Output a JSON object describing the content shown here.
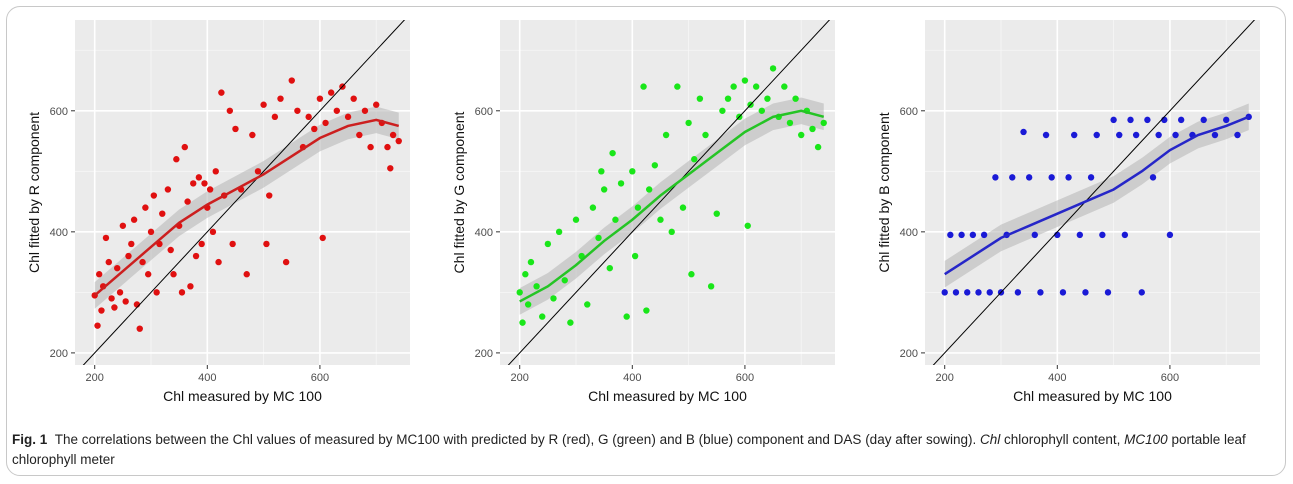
{
  "caption": {
    "fig_label": "Fig. 1",
    "text": "The correlations between the Chl values of measured by MC100 with predicted by R (red), G (green) and B (blue) component and DAS (day after sowing).",
    "abbr1_term": "Chl",
    "abbr1_def": "chlorophyll content,",
    "abbr2_term": "MC100",
    "abbr2_def": "portable leaf chlorophyll meter"
  },
  "chart_data": [
    {
      "type": "scatter",
      "xlabel": "Chl measured by MC 100",
      "ylabel": "Chl fitted by R component",
      "xlim": [
        165,
        760
      ],
      "ylim": [
        180,
        750
      ],
      "xticks": [
        200,
        400,
        600
      ],
      "yticks": [
        200,
        400,
        600
      ],
      "grid": true,
      "point_color": "#e01010",
      "fit_color": "#cc1f1f",
      "reference_line": "y = x",
      "points": [
        [
          200,
          295
        ],
        [
          205,
          245
        ],
        [
          208,
          330
        ],
        [
          212,
          270
        ],
        [
          215,
          310
        ],
        [
          220,
          390
        ],
        [
          225,
          350
        ],
        [
          230,
          290
        ],
        [
          235,
          275
        ],
        [
          240,
          340
        ],
        [
          245,
          300
        ],
        [
          250,
          410
        ],
        [
          255,
          285
        ],
        [
          260,
          360
        ],
        [
          265,
          380
        ],
        [
          270,
          420
        ],
        [
          275,
          280
        ],
        [
          280,
          240
        ],
        [
          285,
          350
        ],
        [
          290,
          440
        ],
        [
          295,
          330
        ],
        [
          300,
          400
        ],
        [
          305,
          460
        ],
        [
          310,
          300
        ],
        [
          315,
          380
        ],
        [
          320,
          430
        ],
        [
          330,
          470
        ],
        [
          335,
          370
        ],
        [
          340,
          330
        ],
        [
          345,
          520
        ],
        [
          350,
          410
        ],
        [
          355,
          300
        ],
        [
          360,
          540
        ],
        [
          365,
          450
        ],
        [
          370,
          310
        ],
        [
          375,
          480
        ],
        [
          380,
          360
        ],
        [
          385,
          490
        ],
        [
          390,
          380
        ],
        [
          395,
          480
        ],
        [
          400,
          440
        ],
        [
          405,
          470
        ],
        [
          410,
          400
        ],
        [
          415,
          500
        ],
        [
          420,
          350
        ],
        [
          425,
          630
        ],
        [
          430,
          460
        ],
        [
          440,
          600
        ],
        [
          445,
          380
        ],
        [
          450,
          570
        ],
        [
          460,
          470
        ],
        [
          470,
          330
        ],
        [
          480,
          560
        ],
        [
          490,
          500
        ],
        [
          500,
          610
        ],
        [
          505,
          380
        ],
        [
          510,
          460
        ],
        [
          520,
          590
        ],
        [
          530,
          620
        ],
        [
          540,
          350
        ],
        [
          550,
          650
        ],
        [
          560,
          600
        ],
        [
          570,
          540
        ],
        [
          580,
          590
        ],
        [
          590,
          570
        ],
        [
          600,
          620
        ],
        [
          605,
          390
        ],
        [
          610,
          580
        ],
        [
          620,
          630
        ],
        [
          630,
          600
        ],
        [
          640,
          640
        ],
        [
          650,
          590
        ],
        [
          660,
          620
        ],
        [
          670,
          560
        ],
        [
          680,
          600
        ],
        [
          690,
          540
        ],
        [
          700,
          610
        ],
        [
          710,
          580
        ],
        [
          720,
          540
        ],
        [
          730,
          560
        ],
        [
          740,
          550
        ],
        [
          725,
          505
        ]
      ],
      "fit": [
        [
          200,
          295
        ],
        [
          250,
          335
        ],
        [
          300,
          375
        ],
        [
          350,
          415
        ],
        [
          400,
          445
        ],
        [
          450,
          470
        ],
        [
          500,
          495
        ],
        [
          550,
          525
        ],
        [
          600,
          555
        ],
        [
          650,
          575
        ],
        [
          700,
          585
        ],
        [
          740,
          575
        ]
      ]
    },
    {
      "type": "scatter",
      "xlabel": "Chl measured by MC 100",
      "ylabel": "Chl fitted by G component",
      "xlim": [
        165,
        760
      ],
      "ylim": [
        180,
        750
      ],
      "xticks": [
        200,
        400,
        600
      ],
      "yticks": [
        200,
        400,
        600
      ],
      "grid": true,
      "point_color": "#19e619",
      "fit_color": "#25c425",
      "reference_line": "y = x",
      "points": [
        [
          200,
          300
        ],
        [
          205,
          250
        ],
        [
          210,
          330
        ],
        [
          215,
          280
        ],
        [
          220,
          350
        ],
        [
          230,
          310
        ],
        [
          240,
          260
        ],
        [
          250,
          380
        ],
        [
          260,
          290
        ],
        [
          270,
          400
        ],
        [
          280,
          320
        ],
        [
          290,
          250
        ],
        [
          300,
          420
        ],
        [
          310,
          360
        ],
        [
          320,
          280
        ],
        [
          330,
          440
        ],
        [
          340,
          390
        ],
        [
          345,
          500
        ],
        [
          350,
          470
        ],
        [
          360,
          340
        ],
        [
          365,
          530
        ],
        [
          370,
          420
        ],
        [
          380,
          480
        ],
        [
          390,
          260
        ],
        [
          400,
          500
        ],
        [
          405,
          360
        ],
        [
          410,
          440
        ],
        [
          420,
          640
        ],
        [
          425,
          270
        ],
        [
          430,
          470
        ],
        [
          440,
          510
        ],
        [
          450,
          420
        ],
        [
          460,
          560
        ],
        [
          470,
          400
        ],
        [
          480,
          640
        ],
        [
          490,
          440
        ],
        [
          500,
          580
        ],
        [
          505,
          330
        ],
        [
          510,
          520
        ],
        [
          520,
          620
        ],
        [
          530,
          560
        ],
        [
          540,
          310
        ],
        [
          550,
          430
        ],
        [
          560,
          600
        ],
        [
          570,
          620
        ],
        [
          580,
          640
        ],
        [
          590,
          590
        ],
        [
          600,
          650
        ],
        [
          605,
          410
        ],
        [
          610,
          610
        ],
        [
          620,
          640
        ],
        [
          630,
          600
        ],
        [
          640,
          620
        ],
        [
          650,
          670
        ],
        [
          660,
          590
        ],
        [
          670,
          640
        ],
        [
          680,
          580
        ],
        [
          690,
          620
        ],
        [
          700,
          560
        ],
        [
          710,
          600
        ],
        [
          720,
          570
        ],
        [
          730,
          540
        ],
        [
          740,
          580
        ]
      ],
      "fit": [
        [
          200,
          285
        ],
        [
          250,
          310
        ],
        [
          300,
          345
        ],
        [
          350,
          385
        ],
        [
          400,
          420
        ],
        [
          450,
          460
        ],
        [
          500,
          495
        ],
        [
          550,
          530
        ],
        [
          600,
          565
        ],
        [
          650,
          590
        ],
        [
          700,
          600
        ],
        [
          740,
          590
        ]
      ]
    },
    {
      "type": "scatter",
      "xlabel": "Chl measured by MC 100",
      "ylabel": "Chl fitted by B component",
      "xlim": [
        165,
        760
      ],
      "ylim": [
        180,
        750
      ],
      "xticks": [
        200,
        400,
        600
      ],
      "yticks": [
        200,
        400,
        600
      ],
      "grid": true,
      "point_color": "#1a1ad6",
      "fit_color": "#2626c8",
      "reference_line": "y = x",
      "points": [
        [
          200,
          300
        ],
        [
          210,
          395
        ],
        [
          220,
          300
        ],
        [
          230,
          395
        ],
        [
          240,
          300
        ],
        [
          250,
          395
        ],
        [
          260,
          300
        ],
        [
          270,
          395
        ],
        [
          280,
          300
        ],
        [
          290,
          490
        ],
        [
          300,
          300
        ],
        [
          310,
          395
        ],
        [
          320,
          490
        ],
        [
          330,
          300
        ],
        [
          340,
          565
        ],
        [
          350,
          490
        ],
        [
          360,
          395
        ],
        [
          370,
          300
        ],
        [
          380,
          560
        ],
        [
          390,
          490
        ],
        [
          400,
          395
        ],
        [
          410,
          300
        ],
        [
          420,
          490
        ],
        [
          430,
          560
        ],
        [
          440,
          395
        ],
        [
          450,
          300
        ],
        [
          460,
          490
        ],
        [
          470,
          560
        ],
        [
          480,
          395
        ],
        [
          490,
          300
        ],
        [
          500,
          585
        ],
        [
          510,
          560
        ],
        [
          520,
          395
        ],
        [
          530,
          585
        ],
        [
          540,
          560
        ],
        [
          550,
          300
        ],
        [
          560,
          585
        ],
        [
          570,
          490
        ],
        [
          580,
          560
        ],
        [
          590,
          585
        ],
        [
          600,
          395
        ],
        [
          610,
          560
        ],
        [
          620,
          585
        ],
        [
          640,
          560
        ],
        [
          660,
          585
        ],
        [
          680,
          560
        ],
        [
          700,
          585
        ],
        [
          720,
          560
        ],
        [
          740,
          590
        ]
      ],
      "fit": [
        [
          200,
          330
        ],
        [
          250,
          360
        ],
        [
          300,
          390
        ],
        [
          350,
          410
        ],
        [
          400,
          430
        ],
        [
          450,
          450
        ],
        [
          500,
          470
        ],
        [
          550,
          500
        ],
        [
          600,
          535
        ],
        [
          650,
          560
        ],
        [
          700,
          575
        ],
        [
          740,
          590
        ]
      ]
    }
  ]
}
